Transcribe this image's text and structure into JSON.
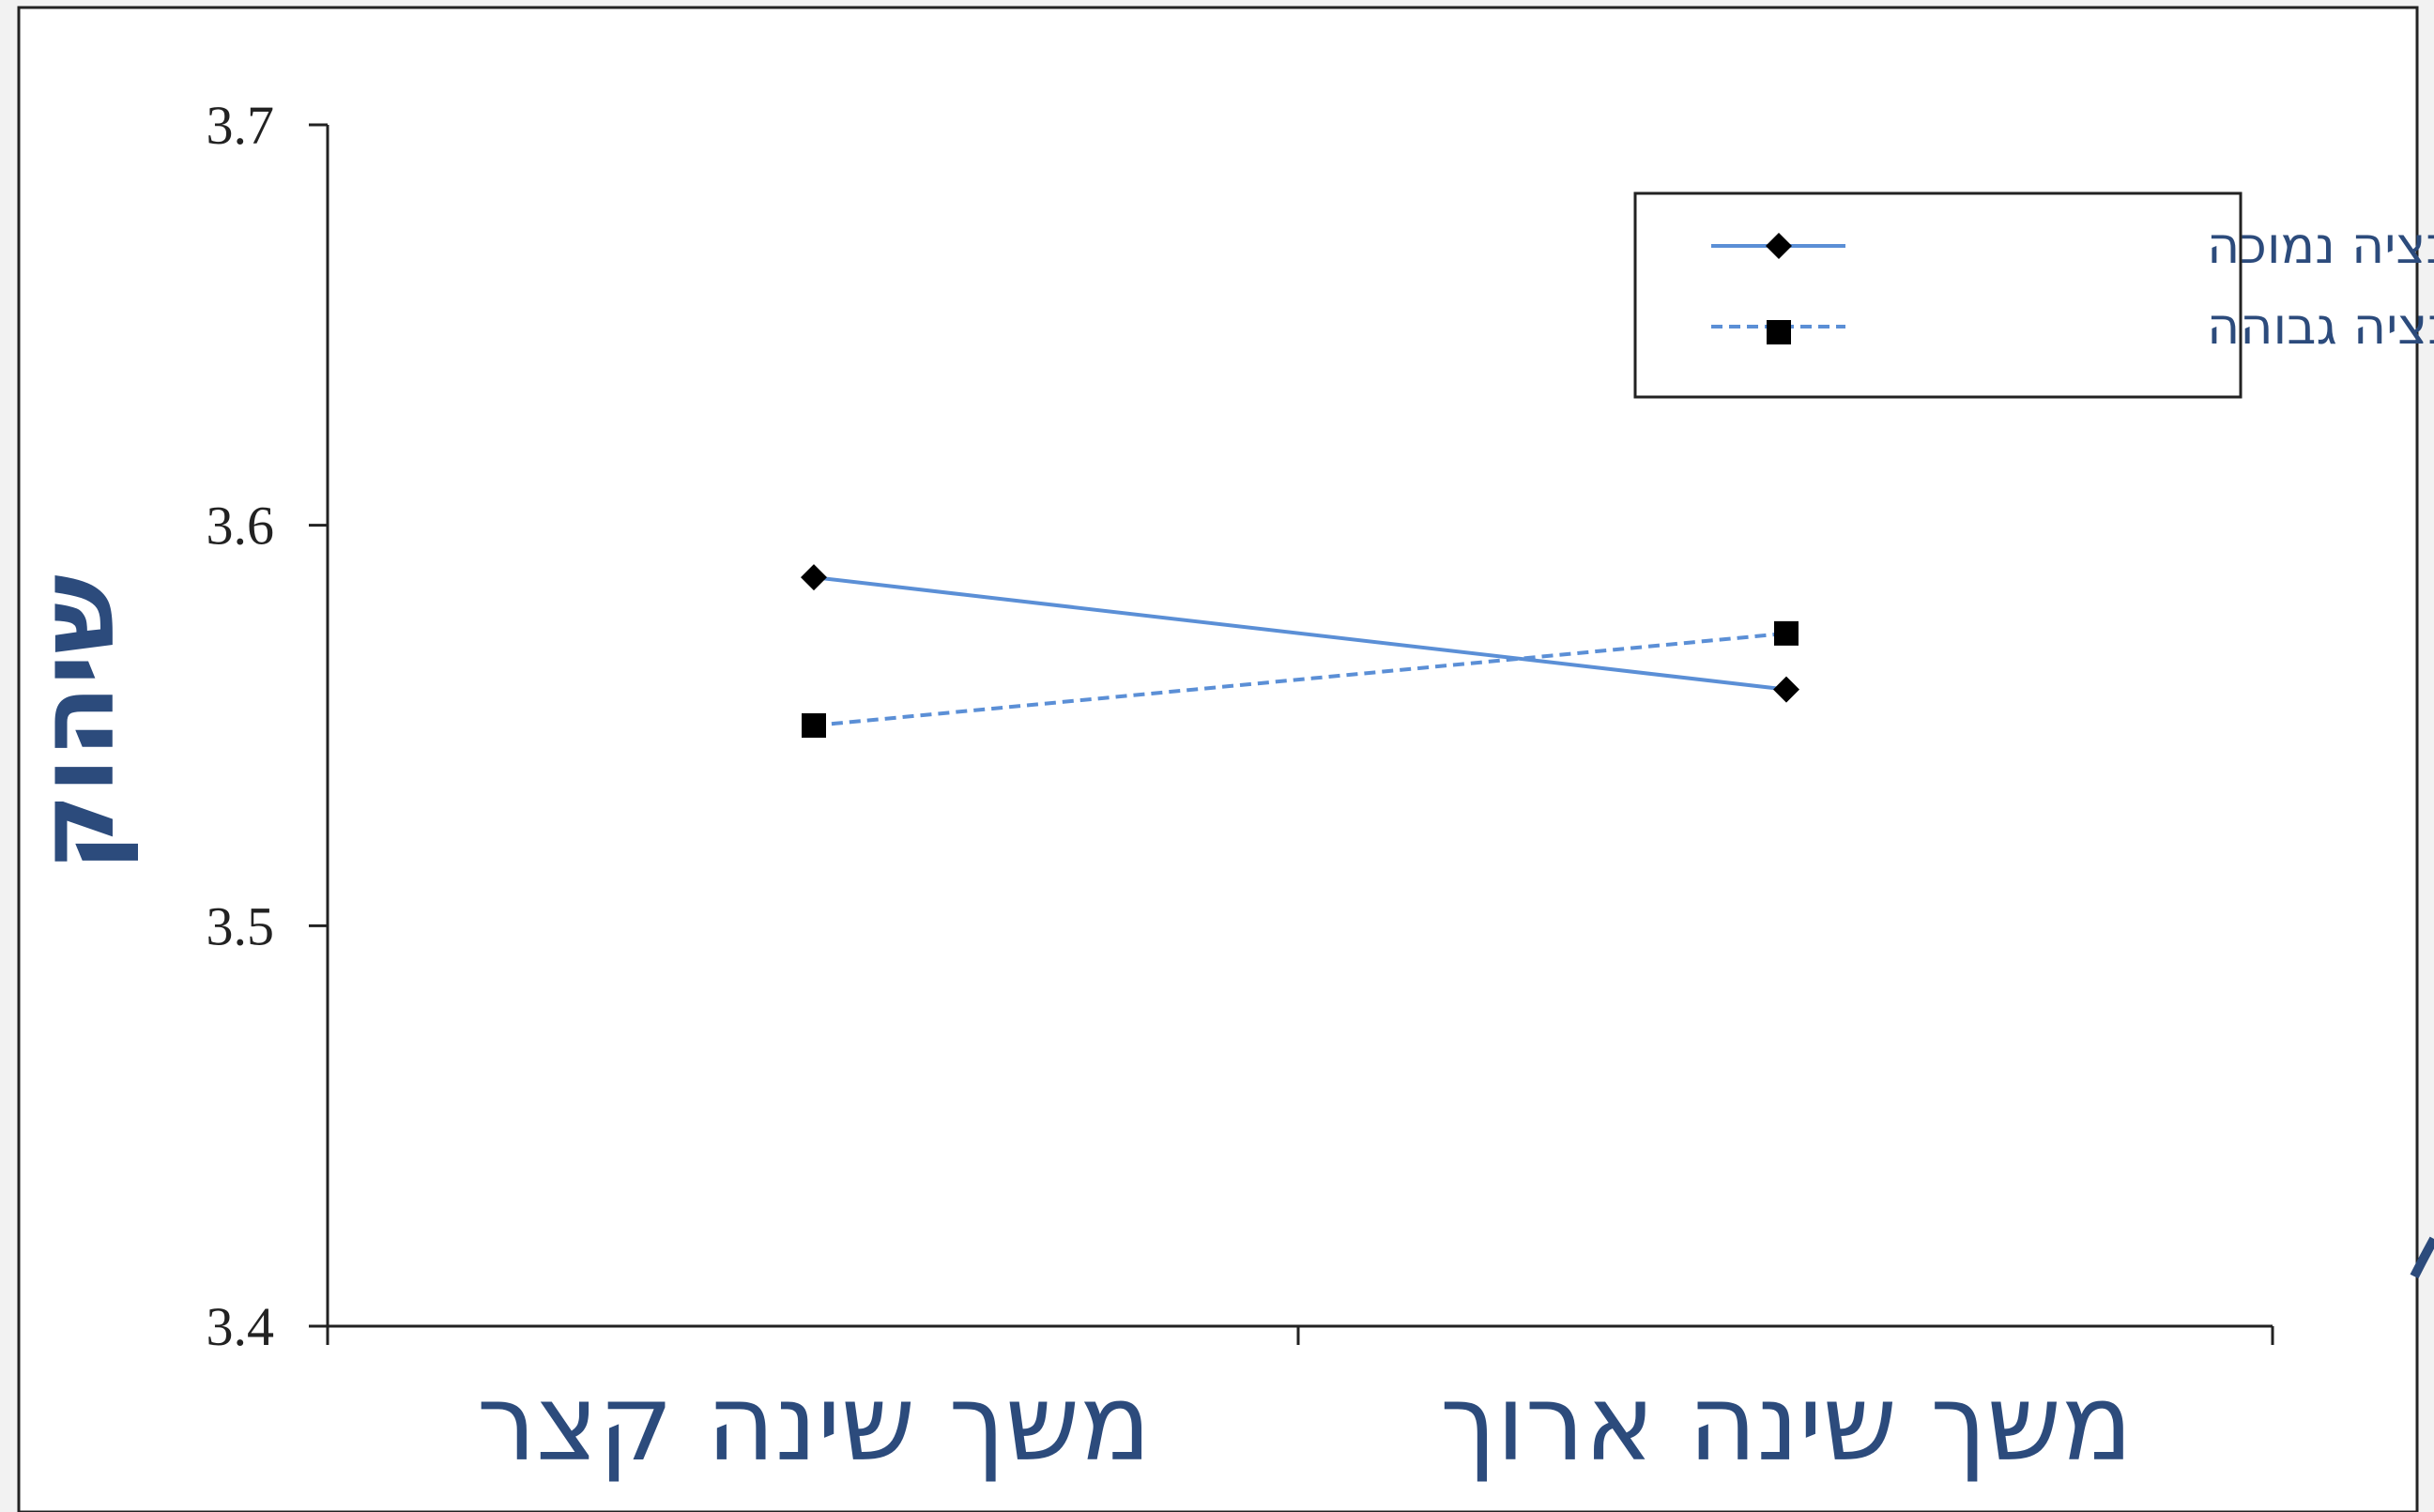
{
  "chart_data": {
    "type": "line",
    "categories": [
      "משך שינה קצר",
      "משך שינה ארוך"
    ],
    "ylabel": "שיהוק",
    "xlabel": "",
    "ylim": [
      3.4,
      3.7
    ],
    "yticks": [
      "3.4",
      "3.5",
      "3.6",
      "3.7"
    ],
    "legend_position": "top-right",
    "grid": false,
    "series": [
      {
        "name": "מוטיבציה נמוכה",
        "values": [
          3.587,
          3.559
        ],
        "marker": "diamond",
        "style": "solid",
        "color": "#5b8fd6"
      },
      {
        "name": "מוטיבציה גבוהה",
        "values": [
          3.55,
          3.573
        ],
        "marker": "square",
        "style": "dashed",
        "color": "#5b8fd6"
      }
    ]
  }
}
